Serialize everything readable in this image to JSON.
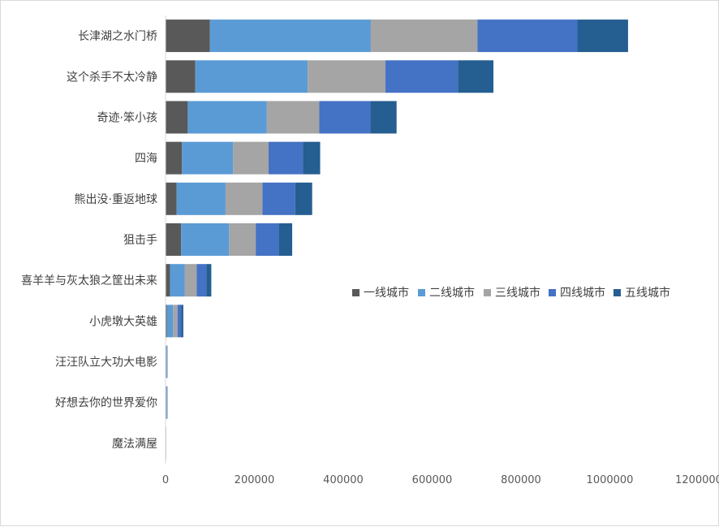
{
  "chart_data": {
    "type": "bar",
    "orientation": "horizontal",
    "stacked": true,
    "categories": [
      "长津湖之水门桥",
      "这个杀手不太冷静",
      "奇迹·笨小孩",
      "四海",
      "熊出没·重返地球",
      "狙击手",
      "喜羊羊与灰太狼之筐出未来",
      "小虎墩大英雄",
      "汪汪队立大功大电影",
      "好想去你的世界爱你",
      "魔法满屋"
    ],
    "series": [
      {
        "name": "一线城市",
        "color": "#595959",
        "values": [
          100000,
          67000,
          50000,
          37000,
          25000,
          35000,
          10000,
          3000,
          500,
          500,
          200
        ]
      },
      {
        "name": "二线城市",
        "color": "#5B9BD5",
        "values": [
          362000,
          253000,
          178000,
          115000,
          110000,
          108000,
          33000,
          14000,
          1500,
          1500,
          400
        ]
      },
      {
        "name": "三线城市",
        "color": "#A5A5A5",
        "values": [
          240000,
          175000,
          118000,
          80000,
          83000,
          60000,
          27000,
          10000,
          1000,
          1000,
          300
        ]
      },
      {
        "name": "四线城市",
        "color": "#4472C4",
        "values": [
          225000,
          163000,
          115000,
          77000,
          74000,
          52000,
          22000,
          8000,
          1000,
          1000,
          300
        ]
      },
      {
        "name": "五线城市",
        "color": "#255E91",
        "values": [
          114000,
          80000,
          59000,
          39000,
          38000,
          30000,
          11000,
          5000,
          500,
          500,
          100
        ]
      }
    ],
    "x_ticks": [
      "0",
      "200000",
      "400000",
      "600000",
      "800000",
      "1000000",
      "1200000"
    ],
    "xlim": [
      0,
      1200000
    ],
    "grid": false,
    "legend_position": "right"
  }
}
